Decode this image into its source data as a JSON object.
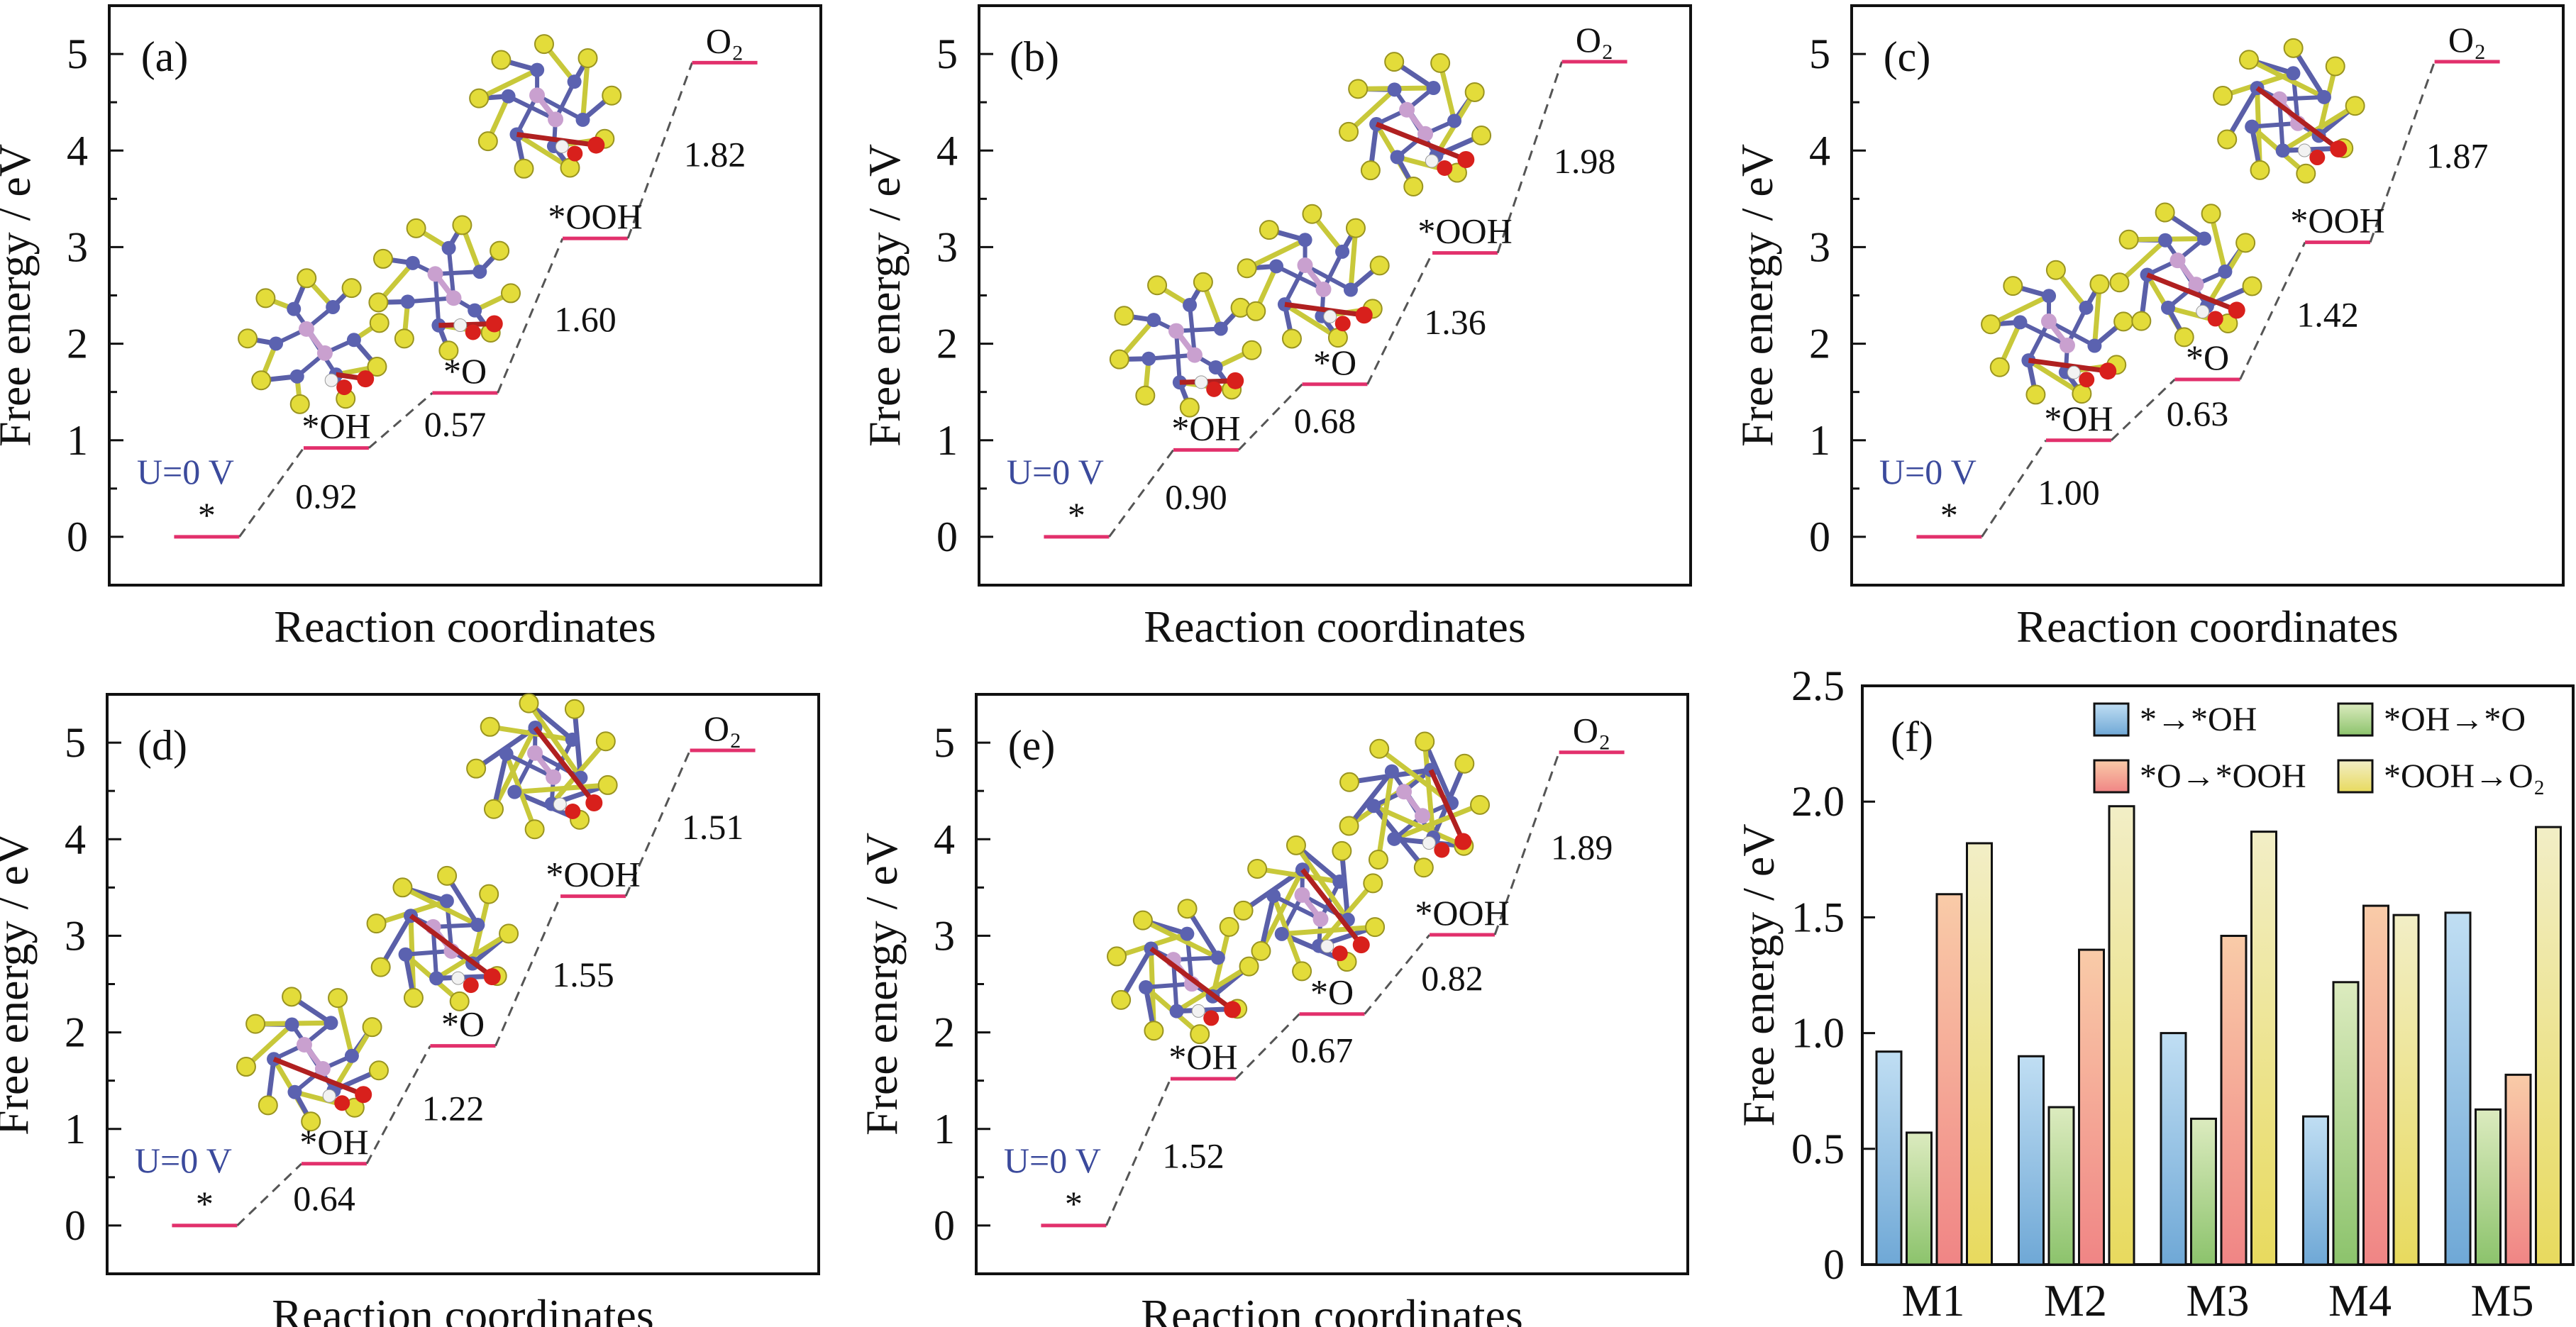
{
  "colors": {
    "level": "#e2306c",
    "connector": "#555555",
    "potential_label": "#3b4a9c",
    "series": [
      "#6fa8d6",
      "#8cc36c",
      "#f08585",
      "#e8da5e"
    ],
    "series_light": [
      "#c0def3",
      "#dcebbf",
      "#f9cba8",
      "#f2eec6"
    ]
  },
  "chart_data": [
    {
      "type": "line",
      "panel_label": "(a)",
      "potential": "U=0 V",
      "states": [
        "*",
        "*OH",
        "*O",
        "*OOH",
        "O₂"
      ],
      "step_values": [
        0.92,
        0.57,
        1.6,
        1.82
      ],
      "xlabel": "Reaction coordinates",
      "ylabel": "Free energy / eV",
      "ylim": [
        -0.5,
        5.5
      ],
      "yticks": [
        "0",
        "1",
        "2",
        "3",
        "4",
        "5"
      ]
    },
    {
      "type": "line",
      "panel_label": "(b)",
      "potential": "U=0 V",
      "states": [
        "*",
        "*OH",
        "*O",
        "*OOH",
        "O₂"
      ],
      "step_values": [
        0.9,
        0.68,
        1.36,
        1.98
      ],
      "xlabel": "Reaction coordinates",
      "ylabel": "Free energy / eV",
      "ylim": [
        -0.5,
        5.5
      ],
      "yticks": [
        "0",
        "1",
        "2",
        "3",
        "4",
        "5"
      ]
    },
    {
      "type": "line",
      "panel_label": "(c)",
      "potential": "U=0 V",
      "states": [
        "*",
        "*OH",
        "*O",
        "*OOH",
        "O₂"
      ],
      "step_values": [
        1.0,
        0.63,
        1.42,
        1.87
      ],
      "xlabel": "Reaction coordinates",
      "ylabel": "Free energy / eV",
      "ylim": [
        -0.5,
        5.5
      ],
      "yticks": [
        "0",
        "1",
        "2",
        "3",
        "4",
        "5"
      ]
    },
    {
      "type": "line",
      "panel_label": "(d)",
      "potential": "U=0 V",
      "states": [
        "*",
        "*OH",
        "*O",
        "*OOH",
        "O₂"
      ],
      "step_values": [
        0.64,
        1.22,
        1.55,
        1.51
      ],
      "xlabel": "Reaction coordinates",
      "ylabel": "Free energy / eV",
      "ylim": [
        -0.5,
        5.5
      ],
      "yticks": [
        "0",
        "1",
        "2",
        "3",
        "4",
        "5"
      ]
    },
    {
      "type": "line",
      "panel_label": "(e)",
      "potential": "U=0 V",
      "states": [
        "*",
        "*OH",
        "*O",
        "*OOH",
        "O₂"
      ],
      "step_values": [
        1.52,
        0.67,
        0.82,
        1.89
      ],
      "xlabel": "Reaction coordinates",
      "ylabel": "Free energy / eV",
      "ylim": [
        -0.5,
        5.5
      ],
      "yticks": [
        "0",
        "1",
        "2",
        "3",
        "4",
        "5"
      ]
    },
    {
      "type": "bar",
      "panel_label": "(f)",
      "categories": [
        "M1",
        "M2",
        "M3",
        "M4",
        "M5"
      ],
      "series": [
        {
          "name": "*→*OH",
          "values": [
            0.92,
            0.9,
            1.0,
            0.64,
            1.52
          ]
        },
        {
          "name": "*OH→*O",
          "values": [
            0.57,
            0.68,
            0.63,
            1.22,
            0.67
          ]
        },
        {
          "name": "*O→*OOH",
          "values": [
            1.6,
            1.36,
            1.42,
            1.55,
            0.82
          ]
        },
        {
          "name": "*OOH→O₂",
          "values": [
            1.82,
            1.98,
            1.87,
            1.51,
            1.89
          ]
        }
      ],
      "xlabel": "",
      "ylabel": "Free energy / eV",
      "ylim": [
        0,
        2.5
      ],
      "yticks": [
        "0",
        "0.5",
        "1.0",
        "1.5",
        "2.0",
        "2.5"
      ],
      "legend": "top-right"
    }
  ]
}
